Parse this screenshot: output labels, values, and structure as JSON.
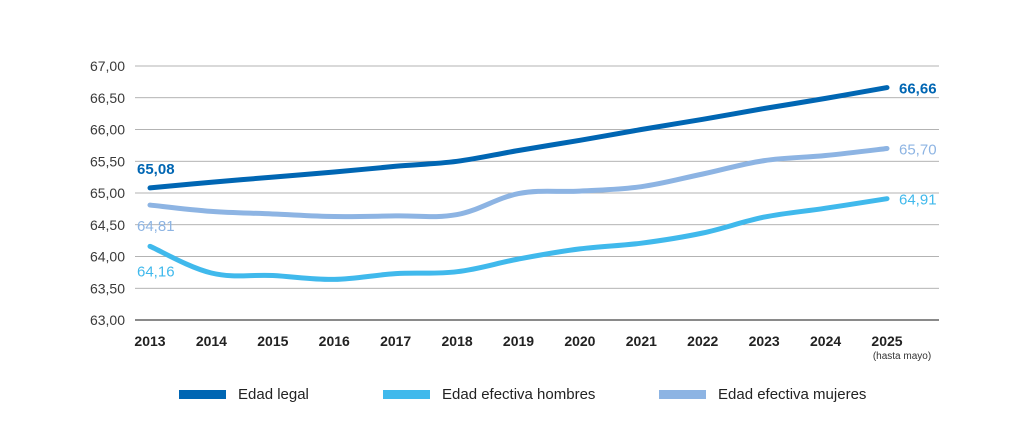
{
  "chart_data": {
    "type": "line",
    "categories": [
      "2013",
      "2014",
      "2015",
      "2016",
      "2017",
      "2018",
      "2019",
      "2020",
      "2021",
      "2022",
      "2023",
      "2024",
      "2025"
    ],
    "category_note": {
      "category": "2025",
      "text": "(hasta mayo)"
    },
    "ylim": [
      63.0,
      67.0
    ],
    "yticks": [
      "63,00",
      "63,50",
      "64,00",
      "64,50",
      "65,00",
      "65,50",
      "66,00",
      "66,50",
      "67,00"
    ],
    "ytick_values": [
      63.0,
      63.5,
      64.0,
      64.5,
      65.0,
      65.5,
      66.0,
      66.5,
      67.0
    ],
    "grid": true,
    "legend_position": "bottom",
    "series": [
      {
        "name": "Edad legal",
        "color": "#0066b3",
        "values": [
          65.08,
          65.17,
          65.25,
          65.33,
          65.42,
          65.5,
          65.67,
          65.83,
          66.0,
          66.16,
          66.33,
          66.49,
          66.66
        ],
        "start_label": "65,08",
        "end_label": "66,66"
      },
      {
        "name": "Edad efectiva hombres",
        "color": "#40b9ec",
        "values": [
          64.16,
          63.74,
          63.7,
          63.64,
          63.73,
          63.76,
          63.96,
          64.12,
          64.21,
          64.37,
          64.62,
          64.76,
          64.91
        ],
        "start_label": "64,16",
        "end_label": "64,91"
      },
      {
        "name": "Edad efectiva mujeres",
        "color": "#8db4e3",
        "values": [
          64.81,
          64.71,
          64.67,
          64.63,
          64.64,
          64.66,
          64.99,
          65.03,
          65.1,
          65.3,
          65.51,
          65.59,
          65.7
        ],
        "start_label": "64,81",
        "end_label": "65,70"
      }
    ]
  }
}
